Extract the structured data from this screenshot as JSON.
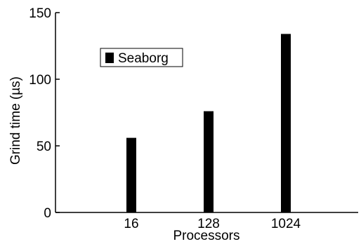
{
  "chart_data": {
    "type": "bar",
    "categories": [
      "16",
      "128",
      "1024"
    ],
    "series": [
      {
        "name": "Seaborg",
        "values": [
          56,
          76,
          134
        ]
      }
    ],
    "title": "",
    "xlabel": "Processors",
    "ylabel": "Grind time (µs)",
    "ylim": [
      0,
      150
    ],
    "yticks": [
      "0",
      "50",
      "100",
      "150"
    ],
    "grid": false,
    "legend_placement": "top-left",
    "bar_color": "#000000"
  }
}
